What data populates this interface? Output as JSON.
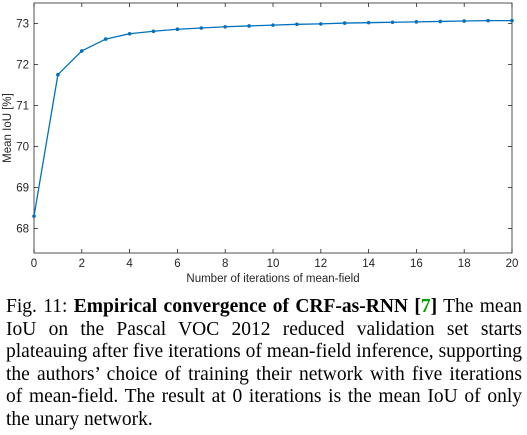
{
  "chart_data": {
    "type": "line",
    "xlabel": "Number of iterations of mean-field",
    "ylabel": "Mean IoU [%]",
    "xlim": [
      0,
      20
    ],
    "ylim": [
      67.4,
      73.5
    ],
    "xticks": [
      0,
      2,
      4,
      6,
      8,
      10,
      12,
      14,
      16,
      18,
      20
    ],
    "yticks": [
      68,
      69,
      70,
      71,
      72,
      73
    ],
    "grid": false,
    "line_color": "#0072bd",
    "series": [
      {
        "x": [
          0,
          1,
          2,
          3,
          4,
          5,
          6,
          7,
          8,
          9,
          10,
          11,
          12,
          13,
          14,
          15,
          16,
          17,
          18,
          19,
          20
        ],
        "values": [
          68.3,
          71.75,
          72.33,
          72.62,
          72.75,
          72.81,
          72.86,
          72.89,
          72.92,
          72.94,
          72.96,
          72.98,
          72.99,
          73.01,
          73.02,
          73.03,
          73.04,
          73.05,
          73.06,
          73.07,
          73.07
        ]
      }
    ]
  },
  "caption": {
    "prefix": "Fig. 11: ",
    "bold_title": "Empirical convergence of CRF-as-RNN [",
    "ref": "7",
    "bold_close": "]",
    "body": " The mean IoU on the Pascal VOC 2012 reduced validation set starts plateauing after five iterations of mean-field inference, supporting the authors’ choice of training their network with five iterations of mean-field. The result at 0 iterations is the mean IoU of only the unary network."
  }
}
